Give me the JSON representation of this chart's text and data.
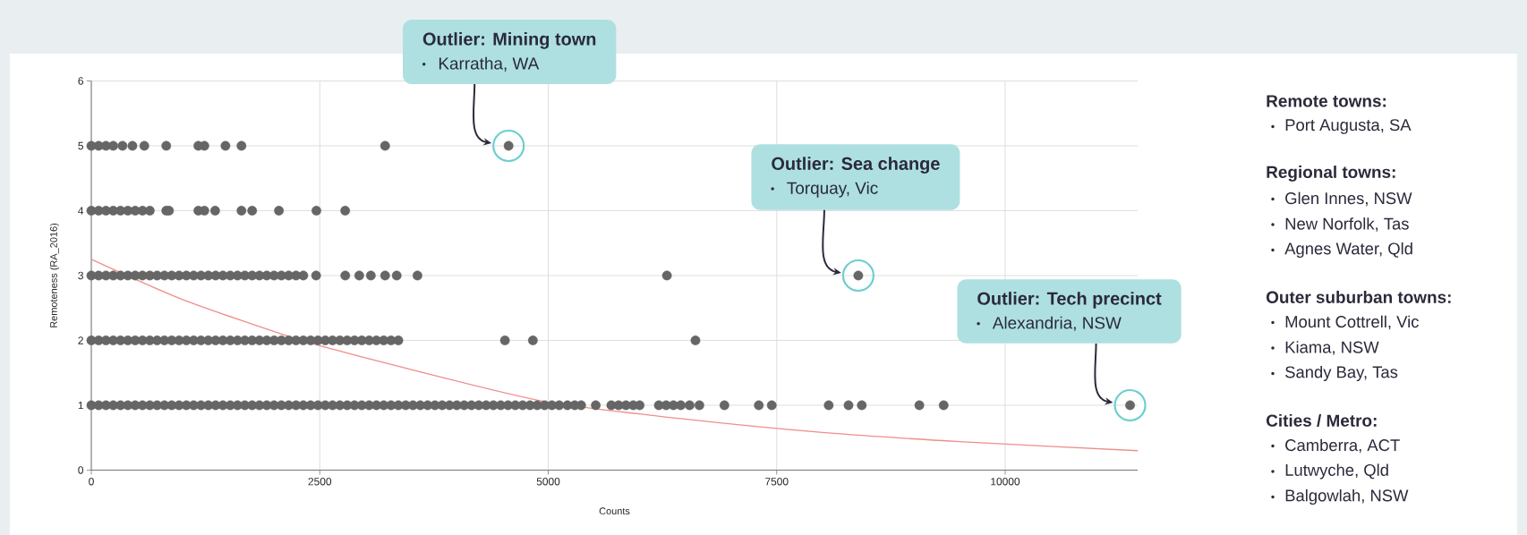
{
  "chart_data": {
    "type": "scatter",
    "xlabel": "Counts",
    "ylabel": "Remoteness (RA_2016)",
    "xlim": [
      0,
      11450
    ],
    "ylim": [
      0,
      6
    ],
    "xticks": [
      0,
      2500,
      5000,
      7500,
      10000
    ],
    "yticks": [
      0,
      1,
      2,
      3,
      4,
      5,
      6
    ],
    "grid": true,
    "series": [
      {
        "marker": "circle",
        "color": "#666666",
        "x": [
          0,
          80,
          160,
          240,
          341,
          450,
          580,
          820,
          1171,
          1237,
          1468,
          1643,
          3215,
          4566
        ],
        "values": [
          5,
          5,
          5,
          5,
          5,
          5,
          5,
          5,
          5,
          5,
          5,
          5,
          5,
          5
        ]
      },
      {
        "marker": "circle",
        "color": "#666666",
        "x": [
          0,
          80,
          160,
          240,
          320,
          400,
          480,
          560,
          640,
          820,
          850,
          1171,
          1237,
          1355,
          1643,
          1760,
          2053,
          2463,
          2778
        ],
        "values": [
          4,
          4,
          4,
          4,
          4,
          4,
          4,
          4,
          4,
          4,
          4,
          4,
          4,
          4,
          4,
          4,
          4,
          4,
          4
        ]
      },
      {
        "marker": "circle",
        "color": "#666666",
        "x": [
          0,
          80,
          160,
          240,
          320,
          400,
          480,
          560,
          640,
          720,
          800,
          880,
          960,
          1040,
          1120,
          1200,
          1280,
          1360,
          1440,
          1520,
          1600,
          1680,
          1760,
          1840,
          1920,
          2000,
          2080,
          2160,
          2240,
          2320,
          2460,
          2779,
          2932,
          3059,
          3215,
          3342,
          3569,
          6299,
          8393
        ],
        "values": [
          3,
          3,
          3,
          3,
          3,
          3,
          3,
          3,
          3,
          3,
          3,
          3,
          3,
          3,
          3,
          3,
          3,
          3,
          3,
          3,
          3,
          3,
          3,
          3,
          3,
          3,
          3,
          3,
          3,
          3,
          3,
          3,
          3,
          3,
          3,
          3,
          3,
          3,
          3
        ]
      },
      {
        "marker": "circle",
        "color": "#666666",
        "x": [
          0,
          80,
          160,
          240,
          320,
          400,
          480,
          560,
          640,
          720,
          800,
          880,
          960,
          1040,
          1120,
          1200,
          1280,
          1360,
          1440,
          1520,
          1600,
          1680,
          1760,
          1840,
          1920,
          2000,
          2080,
          2160,
          2240,
          2320,
          2400,
          2480,
          2560,
          2640,
          2720,
          2800,
          2880,
          2960,
          3040,
          3120,
          3200,
          3280,
          3360,
          4526,
          4832,
          6611
        ],
        "values": [
          2,
          2,
          2,
          2,
          2,
          2,
          2,
          2,
          2,
          2,
          2,
          2,
          2,
          2,
          2,
          2,
          2,
          2,
          2,
          2,
          2,
          2,
          2,
          2,
          2,
          2,
          2,
          2,
          2,
          2,
          2,
          2,
          2,
          2,
          2,
          2,
          2,
          2,
          2,
          2,
          2,
          2,
          2,
          2,
          2,
          2
        ]
      },
      {
        "marker": "circle",
        "color": "#666666",
        "x": [
          0,
          80,
          160,
          240,
          320,
          400,
          480,
          560,
          640,
          720,
          800,
          880,
          960,
          1040,
          1120,
          1200,
          1280,
          1360,
          1440,
          1520,
          1600,
          1680,
          1760,
          1840,
          1920,
          2000,
          2080,
          2160,
          2240,
          2320,
          2400,
          2480,
          2560,
          2640,
          2720,
          2800,
          2880,
          2960,
          3040,
          3120,
          3200,
          3280,
          3360,
          3440,
          3520,
          3600,
          3680,
          3760,
          3840,
          3920,
          4000,
          4080,
          4160,
          4240,
          4320,
          4400,
          4480,
          4560,
          4640,
          4720,
          4800,
          4880,
          4960,
          5040,
          5120,
          5210,
          5290,
          5360,
          5520,
          5690,
          5770,
          5850,
          5930,
          6000,
          6210,
          6290,
          6370,
          6450,
          6547,
          6654,
          6928,
          7304,
          7446,
          8069,
          8286,
          8431,
          9061,
          9327,
          11367
        ],
        "values": [
          1,
          1,
          1,
          1,
          1,
          1,
          1,
          1,
          1,
          1,
          1,
          1,
          1,
          1,
          1,
          1,
          1,
          1,
          1,
          1,
          1,
          1,
          1,
          1,
          1,
          1,
          1,
          1,
          1,
          1,
          1,
          1,
          1,
          1,
          1,
          1,
          1,
          1,
          1,
          1,
          1,
          1,
          1,
          1,
          1,
          1,
          1,
          1,
          1,
          1,
          1,
          1,
          1,
          1,
          1,
          1,
          1,
          1,
          1,
          1,
          1,
          1,
          1,
          1,
          1,
          1,
          1,
          1,
          1,
          1,
          1,
          1,
          1,
          1,
          1,
          1,
          1,
          1,
          1,
          1,
          1,
          1,
          1,
          1,
          1,
          1,
          1,
          1,
          1
        ]
      },
      {
        "type": "line",
        "color": "#ee8e8a",
        "x": [
          0,
          1000,
          2300,
          3500,
          4950,
          6470,
          8000,
          9500,
          11450
        ],
        "values": [
          3.25,
          2.63,
          2.0,
          1.55,
          1.06,
          0.79,
          0.58,
          0.44,
          0.3
        ]
      }
    ],
    "annotations": [
      "Outlier: Mining town",
      "Karratha, WA",
      "Outlier: Sea change",
      "Torquay, Vic",
      "Outlier: Tech precinct",
      "Alexandria, NSW",
      "Remote towns:",
      "Port Augusta, SA",
      "Regional towns:",
      "Glen Innes, NSW",
      "New Norfolk, Tas",
      "Agnes Water, Qld",
      "Outer suburban towns:",
      "Mount Cottrell, Vic",
      "Kiama, NSW",
      "Sandy Bay, Tas",
      "Cities / Metro:",
      "Camberra, ACT",
      "Lutwyche, Qld",
      "Balgowlah, NSW"
    ]
  }
}
